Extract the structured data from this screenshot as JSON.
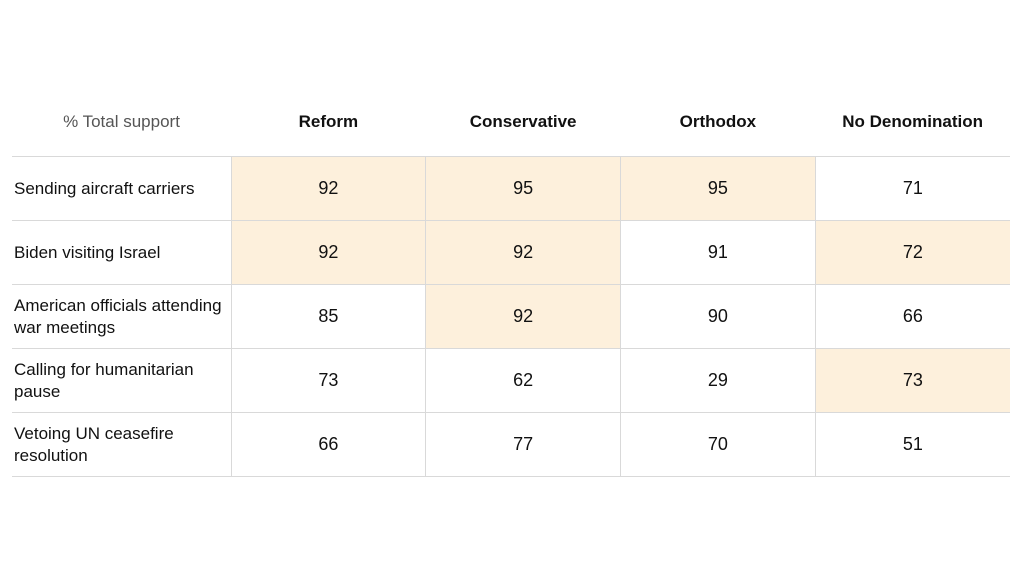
{
  "chart_data": {
    "type": "table",
    "corner_label": "% Total support",
    "columns": [
      "Reform",
      "Conservative",
      "Orthodox",
      "No Denomination"
    ],
    "rows": [
      {
        "label": "Sending aircraft carriers",
        "values": [
          92,
          95,
          95,
          71
        ],
        "highlight": [
          true,
          true,
          true,
          false
        ]
      },
      {
        "label": "Biden visiting Israel",
        "values": [
          92,
          92,
          91,
          72
        ],
        "highlight": [
          true,
          true,
          false,
          true
        ]
      },
      {
        "label": "American officials attending war meetings",
        "values": [
          85,
          92,
          90,
          66
        ],
        "highlight": [
          false,
          true,
          false,
          false
        ]
      },
      {
        "label": "Calling for humanitarian pause",
        "values": [
          73,
          62,
          29,
          73
        ],
        "highlight": [
          false,
          false,
          false,
          true
        ]
      },
      {
        "label": "Vetoing UN ceasefire resolution",
        "values": [
          66,
          77,
          70,
          51
        ],
        "highlight": [
          false,
          false,
          false,
          false
        ]
      }
    ],
    "highlight_color": "#fdf0dc"
  }
}
